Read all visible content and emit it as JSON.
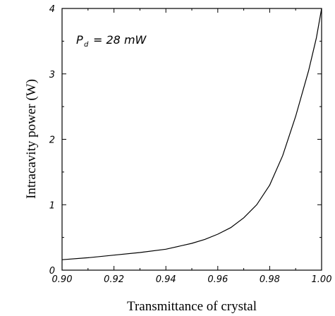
{
  "chart_data": {
    "type": "line",
    "title": "",
    "xlabel": "Transmittance of crystal",
    "ylabel": "Intracavity power (W)",
    "xlim": [
      0.9,
      1.0
    ],
    "ylim": [
      0,
      4
    ],
    "x_ticks": [
      "0.90",
      "0.92",
      "0.94",
      "0.96",
      "0.98",
      "1.00"
    ],
    "y_ticks": [
      "0",
      "1",
      "2",
      "3",
      "4"
    ],
    "grid": false,
    "annotation": {
      "symbol": "P",
      "subscript": "d",
      "text": "= 28 mW"
    },
    "series": [
      {
        "x": [
          0.9,
          0.91,
          0.92,
          0.93,
          0.94,
          0.95,
          0.955,
          0.96,
          0.965,
          0.97,
          0.975,
          0.98,
          0.985,
          0.99,
          0.995,
          0.998,
          1.0
        ],
        "values": [
          0.16,
          0.19,
          0.23,
          0.27,
          0.32,
          0.41,
          0.47,
          0.55,
          0.65,
          0.8,
          1.0,
          1.3,
          1.75,
          2.35,
          3.05,
          3.55,
          4.0
        ],
        "color": "#000000"
      }
    ]
  }
}
